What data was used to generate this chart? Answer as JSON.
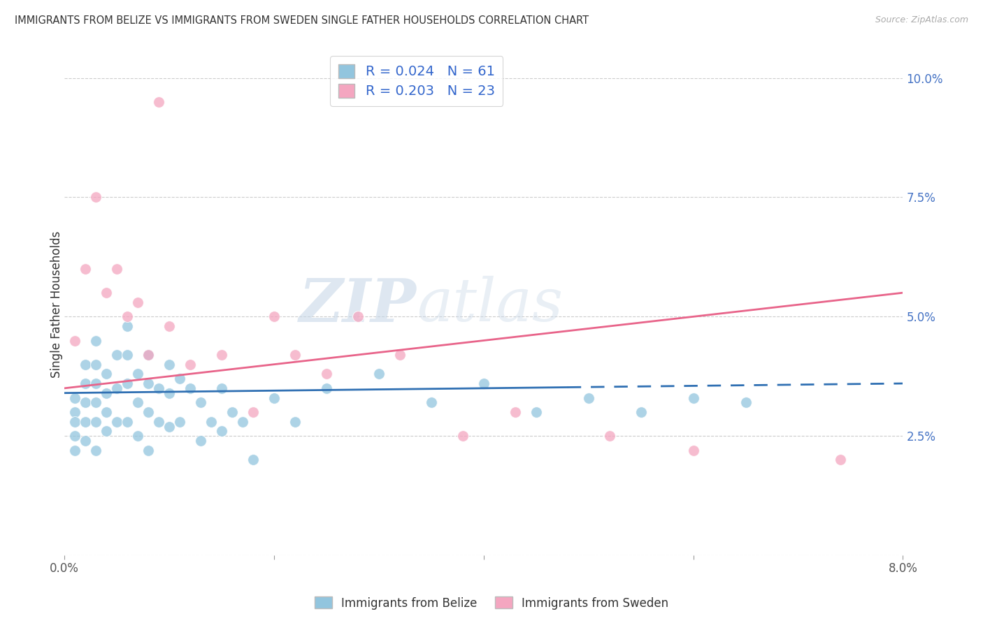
{
  "title": "IMMIGRANTS FROM BELIZE VS IMMIGRANTS FROM SWEDEN SINGLE FATHER HOUSEHOLDS CORRELATION CHART",
  "source": "Source: ZipAtlas.com",
  "ylabel": "Single Father Households",
  "legend_label1": "Immigrants from Belize",
  "legend_label2": "Immigrants from Sweden",
  "R1": 0.024,
  "N1": 61,
  "R2": 0.203,
  "N2": 23,
  "color1": "#92c5de",
  "color2": "#f4a6c0",
  "trendline1_color": "#3070b3",
  "trendline2_color": "#e8648a",
  "xmin": 0.0,
  "xmax": 0.08,
  "ymin": 0.0,
  "ymax": 0.105,
  "yticks": [
    0.0,
    0.025,
    0.05,
    0.075,
    0.1
  ],
  "ytick_labels": [
    "",
    "2.5%",
    "5.0%",
    "7.5%",
    "10.0%"
  ],
  "xticks": [
    0.0,
    0.02,
    0.04,
    0.06,
    0.08
  ],
  "xtick_labels": [
    "0.0%",
    "",
    "",
    "",
    "8.0%"
  ],
  "watermark_zip": "ZIP",
  "watermark_atlas": "atlas",
  "belize_x": [
    0.001,
    0.001,
    0.001,
    0.001,
    0.001,
    0.002,
    0.002,
    0.002,
    0.002,
    0.002,
    0.003,
    0.003,
    0.003,
    0.003,
    0.003,
    0.003,
    0.004,
    0.004,
    0.004,
    0.004,
    0.005,
    0.005,
    0.005,
    0.006,
    0.006,
    0.006,
    0.006,
    0.007,
    0.007,
    0.007,
    0.008,
    0.008,
    0.008,
    0.008,
    0.009,
    0.009,
    0.01,
    0.01,
    0.01,
    0.011,
    0.011,
    0.012,
    0.013,
    0.013,
    0.014,
    0.015,
    0.015,
    0.016,
    0.017,
    0.018,
    0.02,
    0.022,
    0.025,
    0.03,
    0.035,
    0.04,
    0.045,
    0.05,
    0.055,
    0.06,
    0.065
  ],
  "belize_y": [
    0.033,
    0.03,
    0.028,
    0.025,
    0.022,
    0.04,
    0.036,
    0.032,
    0.028,
    0.024,
    0.045,
    0.04,
    0.036,
    0.032,
    0.028,
    0.022,
    0.038,
    0.034,
    0.03,
    0.026,
    0.042,
    0.035,
    0.028,
    0.048,
    0.042,
    0.036,
    0.028,
    0.038,
    0.032,
    0.025,
    0.042,
    0.036,
    0.03,
    0.022,
    0.035,
    0.028,
    0.04,
    0.034,
    0.027,
    0.037,
    0.028,
    0.035,
    0.032,
    0.024,
    0.028,
    0.035,
    0.026,
    0.03,
    0.028,
    0.02,
    0.033,
    0.028,
    0.035,
    0.038,
    0.032,
    0.036,
    0.03,
    0.033,
    0.03,
    0.033,
    0.032
  ],
  "sweden_x": [
    0.001,
    0.002,
    0.003,
    0.004,
    0.005,
    0.006,
    0.007,
    0.008,
    0.009,
    0.01,
    0.012,
    0.015,
    0.018,
    0.02,
    0.022,
    0.025,
    0.028,
    0.032,
    0.038,
    0.043,
    0.052,
    0.06,
    0.074
  ],
  "sweden_y": [
    0.045,
    0.06,
    0.075,
    0.055,
    0.06,
    0.05,
    0.053,
    0.042,
    0.095,
    0.048,
    0.04,
    0.042,
    0.03,
    0.05,
    0.042,
    0.038,
    0.05,
    0.042,
    0.025,
    0.03,
    0.025,
    0.022,
    0.02
  ],
  "trendline1_solid_xmax": 0.048,
  "trendline1_y_start": 0.034,
  "trendline1_y_end": 0.036,
  "trendline2_y_start": 0.035,
  "trendline2_y_end": 0.055
}
